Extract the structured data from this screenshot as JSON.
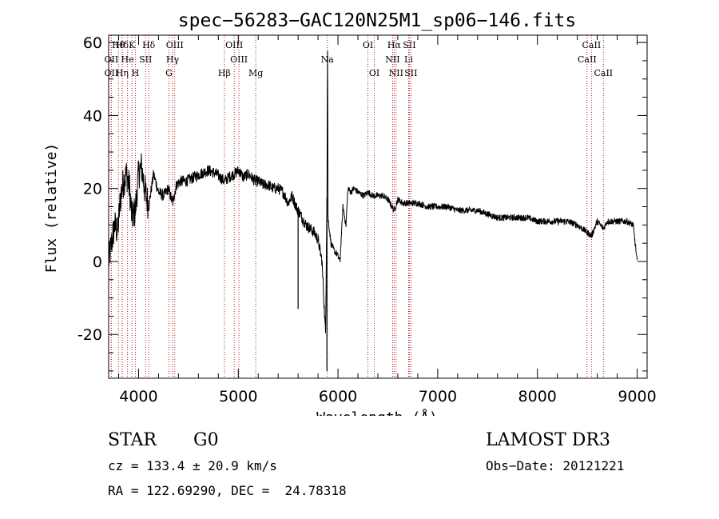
{
  "chart_data": {
    "type": "line",
    "title": "spec−56283−GAC120N25M1_sp06−146.fits",
    "xlabel": "Wavelength (Å)",
    "ylabel": "Flux (relative)",
    "xlim": [
      3700,
      9100
    ],
    "ylim": [
      -32,
      62
    ],
    "xticks": [
      4000,
      5000,
      6000,
      7000,
      8000,
      9000
    ],
    "yticks": [
      -20,
      0,
      20,
      40,
      60
    ],
    "x_minor_step": 200,
    "y_minor_step": 5,
    "grid": false,
    "line_color": "#000000",
    "marker_color": "#b22222",
    "series": [
      {
        "name": "flux",
        "x": [
          3700,
          3730,
          3760,
          3790,
          3820,
          3850,
          3880,
          3910,
          3933,
          3968,
          4000,
          4030,
          4060,
          4102,
          4150,
          4200,
          4250,
          4300,
          4340,
          4380,
          4420,
          4480,
          4550,
          4620,
          4700,
          4780,
          4861,
          4900,
          4960,
          5007,
          5050,
          5100,
          5170,
          5200,
          5250,
          5300,
          5350,
          5400,
          5450,
          5500,
          5540,
          5580,
          5600,
          5640,
          5680,
          5720,
          5760,
          5800,
          5840,
          5875,
          5890,
          5893,
          5896,
          5900,
          5930,
          5960,
          5990,
          6020,
          6050,
          6080,
          6100,
          6130,
          6160,
          6200,
          6260,
          6300,
          6350,
          6400,
          6450,
          6500,
          6563,
          6600,
          6650,
          6700,
          6800,
          6900,
          7000,
          7100,
          7200,
          7300,
          7400,
          7500,
          7600,
          7700,
          7800,
          7900,
          8000,
          8100,
          8200,
          8300,
          8400,
          8498,
          8542,
          8600,
          8662,
          8700,
          8800,
          8900,
          8960,
          9000
        ],
        "y": [
          0,
          5,
          10,
          8,
          18,
          22,
          24,
          20,
          12,
          14,
          24,
          26,
          20,
          15,
          24,
          19,
          18,
          20,
          16,
          21,
          22,
          22,
          23,
          24,
          25,
          24,
          22,
          23,
          24,
          25,
          23,
          24,
          22,
          22,
          21,
          21,
          20,
          20,
          19,
          16,
          18,
          15,
          14,
          12,
          10,
          9,
          8,
          6,
          0,
          -20,
          20,
          50,
          62,
          12,
          5,
          3,
          2,
          0,
          15,
          10,
          20,
          19,
          20,
          19,
          18,
          19,
          18,
          18,
          18,
          17,
          14,
          17,
          16,
          16,
          16,
          15,
          15,
          15,
          14,
          14,
          14,
          13,
          12,
          12,
          12,
          12,
          11,
          11,
          11,
          11,
          10,
          8,
          7,
          11,
          9,
          11,
          11,
          11,
          10,
          0
        ]
      }
    ],
    "spikes": [
      {
        "x": 5600,
        "y": -13
      },
      {
        "x": 5889,
        "y": -30
      },
      {
        "x": 5896,
        "y": 62
      }
    ],
    "line_markers": [
      {
        "label": "Hθ",
        "x": 3798,
        "row": 1
      },
      {
        "label": "OII",
        "x": 3727,
        "row": 2
      },
      {
        "label": "OII",
        "x": 3727,
        "row": 3
      },
      {
        "label": "Hδ",
        "x": 3835,
        "row": 1
      },
      {
        "label": "He",
        "x": 3889,
        "row": 2
      },
      {
        "label": "Hη",
        "x": 3835,
        "row": 3
      },
      {
        "label": "K",
        "x": 3934,
        "row": 1
      },
      {
        "label": "SII",
        "x": 4070,
        "row": 2
      },
      {
        "label": "H",
        "x": 3968,
        "row": 3
      },
      {
        "label": "Hδ",
        "x": 4102,
        "row": 1
      },
      {
        "label": "OIII",
        "x": 4363,
        "row": 1
      },
      {
        "label": "Hγ",
        "x": 4341,
        "row": 2
      },
      {
        "label": "G",
        "x": 4305,
        "row": 3
      },
      {
        "label": "Hβ",
        "x": 4861,
        "row": 3
      },
      {
        "label": "OIII",
        "x": 4959,
        "row": 1
      },
      {
        "label": "OIII",
        "x": 5007,
        "row": 2
      },
      {
        "label": "Mg",
        "x": 5175,
        "row": 3
      },
      {
        "label": "Na",
        "x": 5893,
        "row": 2
      },
      {
        "label": "OI",
        "x": 6300,
        "row": 1
      },
      {
        "label": "OI",
        "x": 6364,
        "row": 3
      },
      {
        "label": "Hα",
        "x": 6563,
        "row": 1
      },
      {
        "label": "NII",
        "x": 6548,
        "row": 2
      },
      {
        "label": "NII",
        "x": 6583,
        "row": 3
      },
      {
        "label": "SII",
        "x": 6716,
        "row": 1
      },
      {
        "label": "Li",
        "x": 6708,
        "row": 2
      },
      {
        "label": "SII",
        "x": 6731,
        "row": 3
      },
      {
        "label": "CaII",
        "x": 8542,
        "row": 1
      },
      {
        "label": "CaII",
        "x": 8498,
        "row": 2
      },
      {
        "label": "CaII",
        "x": 8662,
        "row": 3
      }
    ]
  },
  "info": {
    "class_label": "STAR",
    "subclass": "G0",
    "survey": "LAMOST DR3",
    "redshift": "cz = 133.4 ± 20.9 km/s",
    "obs_date": "Obs−Date: 20121221",
    "coords": "RA = 122.69290, DEC =  24.78318"
  }
}
